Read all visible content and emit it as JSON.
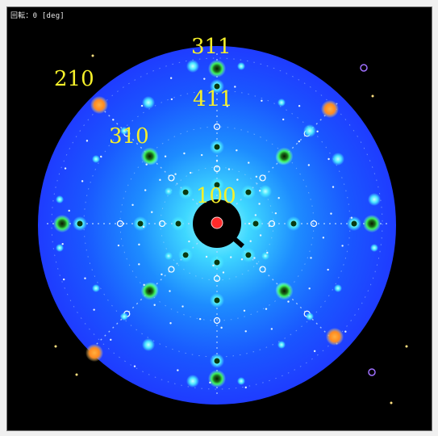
{
  "window": {
    "title": "回転：0 [deg]"
  },
  "pattern": {
    "colors": {
      "disk": "#1f3cff",
      "glow": "#36f0ff",
      "spot_green": "#22d34a",
      "spot_orange": "#ff9a2a",
      "center_red": "#ff2a2a",
      "label": "#f5f02a"
    },
    "labels": [
      {
        "text": "311"
      },
      {
        "text": "210"
      },
      {
        "text": "411"
      },
      {
        "text": "310"
      },
      {
        "text": "100"
      }
    ]
  }
}
